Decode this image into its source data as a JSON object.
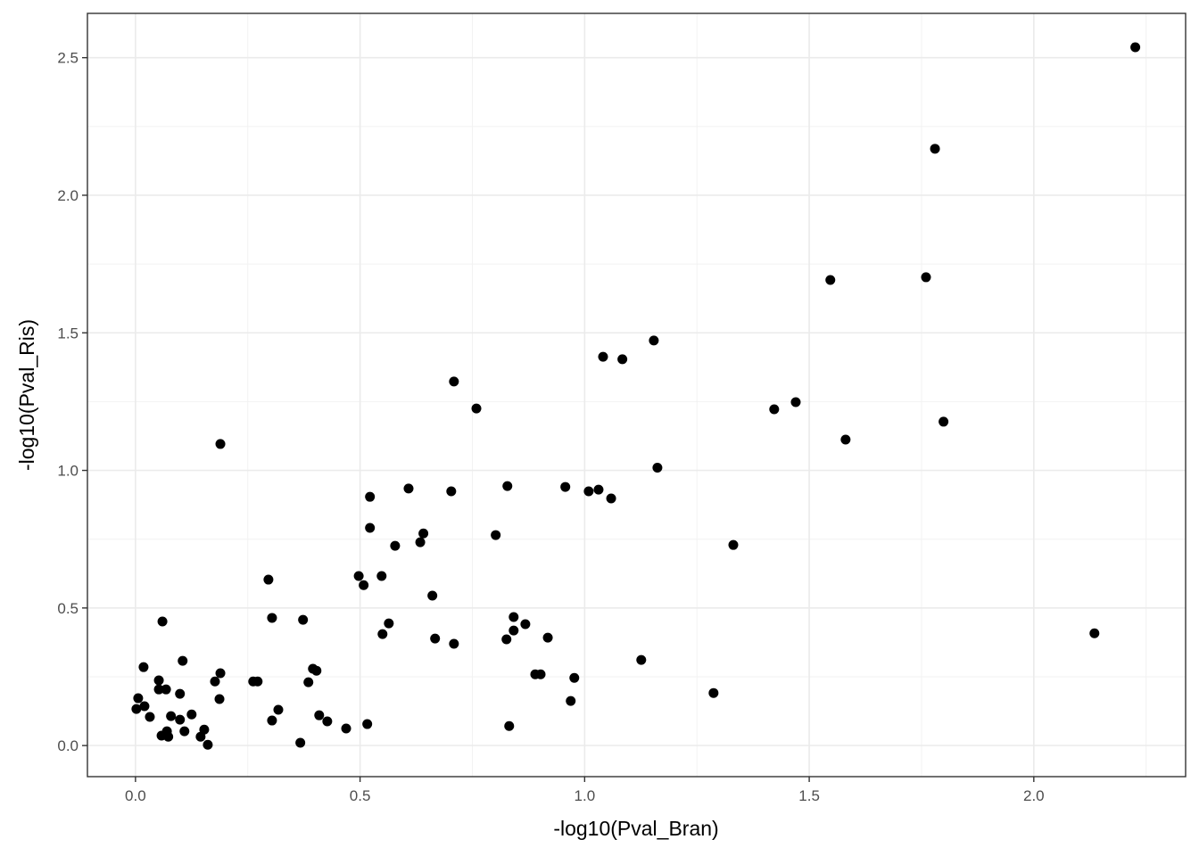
{
  "chart_data": {
    "type": "scatter",
    "x_label": "-log10(Pval_Bran)",
    "y_label": "-log10(Pval_Ris)",
    "color": "#000000",
    "grid": true,
    "xlim": [
      -0.107,
      2.338
    ],
    "ylim": [
      -0.113,
      2.661
    ],
    "xticks": [
      {
        "value": 0,
        "label": "0.0"
      },
      0.5,
      {
        "value": 1,
        "label": "1.0"
      },
      1.5,
      {
        "value": 2,
        "label": "2.0"
      }
    ],
    "yticks": [
      {
        "value": 0,
        "label": "0.0"
      },
      0.5,
      {
        "value": 1,
        "label": "1.0"
      },
      1.5,
      {
        "value": 2,
        "label": "2.0"
      },
      2.5
    ],
    "x": [
      2.226,
      1.78,
      1.547,
      1.76,
      1.154,
      1.041,
      1.084,
      0.709,
      0.759,
      1.422,
      1.47,
      1.581,
      1.799,
      0.189,
      1.162,
      0.522,
      0.608,
      0.703,
      0.828,
      0.957,
      1.009,
      1.031,
      1.059,
      0.522,
      0.641,
      0.802,
      0.578,
      0.634,
      1.331,
      0.296,
      0.497,
      0.548,
      0.508,
      0.661,
      0.304,
      0.373,
      0.06,
      0.564,
      0.842,
      0.868,
      0.842,
      0.55,
      0.667,
      0.709,
      0.826,
      0.918,
      2.135,
      0.105,
      1.126,
      0.018,
      0.395,
      0.403,
      0.189,
      0.89,
      0.902,
      0.977,
      0.052,
      0.177,
      0.262,
      0.272,
      0.385,
      0.052,
      0.068,
      0.099,
      1.287,
      0.006,
      0.187,
      0.969,
      0.02,
      0.002,
      0.318,
      0.032,
      0.079,
      0.125,
      0.409,
      0.099,
      0.304,
      0.427,
      0.516,
      0.469,
      0.832,
      0.153,
      0.07,
      0.109,
      0.058,
      0.073,
      0.145,
      0.161,
      0.367
    ],
    "values": [
      2.538,
      2.169,
      1.692,
      1.702,
      1.472,
      1.413,
      1.404,
      1.323,
      1.225,
      1.222,
      1.248,
      1.112,
      1.177,
      1.096,
      1.01,
      0.904,
      0.934,
      0.924,
      0.943,
      0.94,
      0.924,
      0.93,
      0.898,
      0.791,
      0.771,
      0.765,
      0.726,
      0.739,
      0.729,
      0.603,
      0.616,
      0.616,
      0.583,
      0.545,
      0.464,
      0.457,
      0.451,
      0.444,
      0.467,
      0.441,
      0.418,
      0.405,
      0.389,
      0.37,
      0.386,
      0.392,
      0.408,
      0.308,
      0.311,
      0.285,
      0.279,
      0.272,
      0.263,
      0.259,
      0.259,
      0.246,
      0.237,
      0.233,
      0.233,
      0.233,
      0.23,
      0.204,
      0.204,
      0.188,
      0.191,
      0.172,
      0.169,
      0.162,
      0.143,
      0.133,
      0.13,
      0.104,
      0.107,
      0.113,
      0.11,
      0.094,
      0.091,
      0.088,
      0.078,
      0.062,
      0.071,
      0.058,
      0.052,
      0.052,
      0.036,
      0.032,
      0.032,
      0.003,
      0.01
    ]
  }
}
